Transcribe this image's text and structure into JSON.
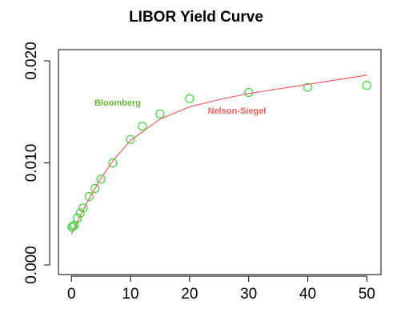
{
  "chart_data": {
    "type": "scatter",
    "title": "LIBOR Yield Curve",
    "xlim": [
      -2.2,
      52.4
    ],
    "ylim": [
      -0.00094,
      0.0211
    ],
    "xticks": [
      0,
      10,
      20,
      30,
      40,
      50
    ],
    "yticks": [
      {
        "value": 0,
        "label": "0.000"
      },
      {
        "value": 0.01,
        "label": "0.010"
      },
      {
        "value": 0.02,
        "label": "0.020"
      }
    ],
    "series": [
      {
        "name": "Bloomberg",
        "color": "#33dd33",
        "type": "scatter",
        "x": [
          0.08,
          0.25,
          0.5,
          1,
          1.5,
          2,
          3,
          4,
          5,
          7,
          10,
          12,
          15,
          20,
          30,
          40,
          50
        ],
        "values": [
          0.0037,
          0.0038,
          0.0039,
          0.0046,
          0.0051,
          0.0056,
          0.0067,
          0.0075,
          0.0084,
          0.01,
          0.0123,
          0.0136,
          0.0148,
          0.0163,
          0.0169,
          0.0174,
          0.0176
        ]
      },
      {
        "name": "Nelson-Siegel",
        "color": "#f06060",
        "type": "line",
        "x": [
          0,
          1,
          2,
          3,
          5,
          7,
          10,
          15,
          20,
          25,
          30,
          40,
          50
        ],
        "values": [
          0.003,
          0.0042,
          0.0054,
          0.0065,
          0.0085,
          0.0102,
          0.0122,
          0.0143,
          0.0155,
          0.0162,
          0.0168,
          0.0177,
          0.0186
        ]
      }
    ]
  }
}
